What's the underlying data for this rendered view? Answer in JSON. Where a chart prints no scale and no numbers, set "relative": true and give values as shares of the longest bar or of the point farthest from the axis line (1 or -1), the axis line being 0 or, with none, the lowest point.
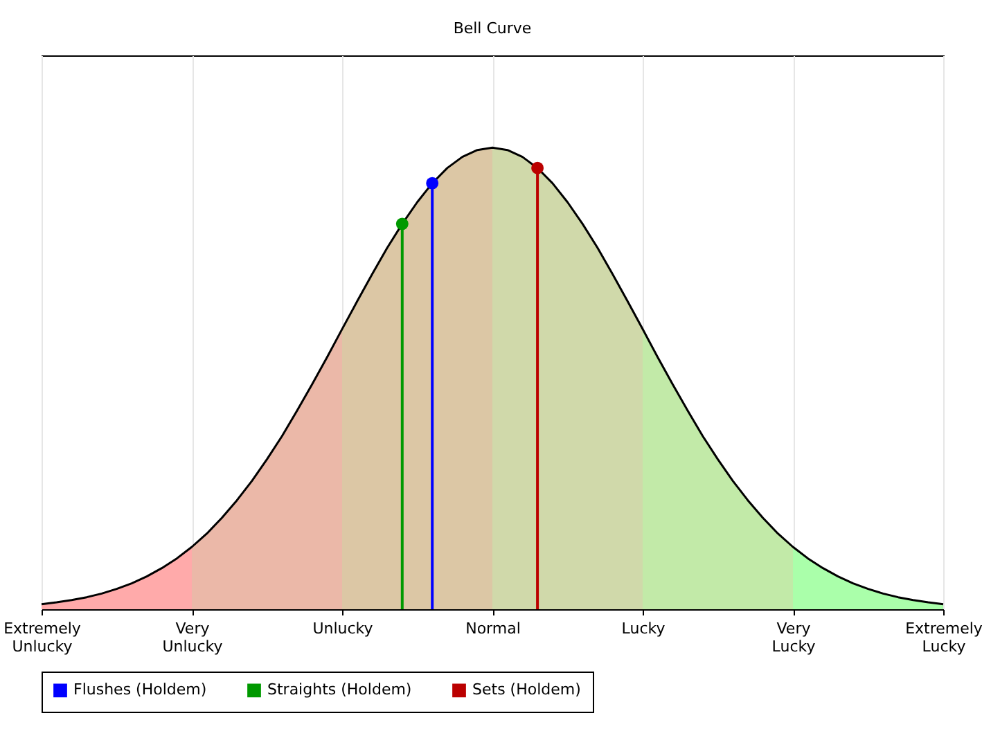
{
  "chart_data": {
    "type": "line",
    "title": "Bell Curve",
    "relative": true,
    "categories": [
      "Extremely Unlucky",
      null,
      null,
      null,
      null,
      null,
      null,
      null,
      null,
      null,
      "Very Unlucky",
      null,
      null,
      null,
      null,
      null,
      null,
      null,
      null,
      null,
      "Unlucky",
      null,
      null,
      null,
      null,
      null,
      null,
      null,
      null,
      null,
      "Normal",
      null,
      null,
      null,
      null,
      null,
      null,
      null,
      null,
      null,
      "Lucky",
      null,
      null,
      null,
      null,
      null,
      null,
      null,
      null,
      null,
      "Very Lucky",
      null,
      null,
      null,
      null,
      null,
      null,
      null,
      null,
      null,
      "Extremely Lucky"
    ],
    "series": [
      {
        "type": "area",
        "color": "#ffaaaa",
        "values": [
          0.011,
          0.015,
          0.02,
          0.026,
          0.034,
          0.044,
          0.056,
          0.071,
          0.089,
          0.11,
          0.135,
          null,
          null,
          null,
          null,
          null,
          null,
          null,
          null,
          null,
          null,
          null,
          null,
          null,
          null,
          null,
          null,
          null,
          null,
          null,
          null,
          null,
          null,
          null,
          null,
          null,
          null,
          null,
          null,
          null,
          null,
          null,
          null,
          null,
          null,
          null,
          null,
          null,
          null,
          null,
          null,
          null,
          null,
          null,
          null,
          null,
          null,
          null,
          null,
          null,
          null
        ]
      },
      {
        "type": "area",
        "color": "#ebb8a8",
        "values": [
          null,
          null,
          null,
          null,
          null,
          null,
          null,
          null,
          null,
          null,
          0.135,
          0.164,
          0.198,
          0.236,
          0.278,
          0.325,
          0.375,
          0.43,
          0.487,
          0.546,
          0.607,
          null,
          null,
          null,
          null,
          null,
          null,
          null,
          null,
          null,
          null,
          null,
          null,
          null,
          null,
          null,
          null,
          null,
          null,
          null,
          null,
          null,
          null,
          null,
          null,
          null,
          null,
          null,
          null,
          null,
          null,
          null,
          null,
          null,
          null,
          null,
          null,
          null,
          null,
          null,
          null
        ]
      },
      {
        "type": "area",
        "color": "#dcc7a5",
        "values": [
          null,
          null,
          null,
          null,
          null,
          null,
          null,
          null,
          null,
          null,
          null,
          null,
          null,
          null,
          null,
          null,
          null,
          null,
          null,
          null,
          0.607,
          0.667,
          0.726,
          0.783,
          0.835,
          0.882,
          0.923,
          0.956,
          0.98,
          0.995,
          1.0,
          null,
          null,
          null,
          null,
          null,
          null,
          null,
          null,
          null,
          null,
          null,
          null,
          null,
          null,
          null,
          null,
          null,
          null,
          null,
          null,
          null,
          null,
          null,
          null,
          null,
          null,
          null,
          null,
          null,
          null
        ]
      },
      {
        "type": "area",
        "color": "#d0d9aa",
        "values": [
          null,
          null,
          null,
          null,
          null,
          null,
          null,
          null,
          null,
          null,
          null,
          null,
          null,
          null,
          null,
          null,
          null,
          null,
          null,
          null,
          null,
          null,
          null,
          null,
          null,
          null,
          null,
          null,
          null,
          null,
          1.0,
          0.995,
          0.98,
          0.956,
          0.923,
          0.882,
          0.835,
          0.783,
          0.726,
          0.667,
          0.607,
          null,
          null,
          null,
          null,
          null,
          null,
          null,
          null,
          null,
          null,
          null,
          null,
          null,
          null,
          null,
          null,
          null,
          null,
          null,
          null
        ]
      },
      {
        "type": "area",
        "color": "#c2eaa8",
        "values": [
          null,
          null,
          null,
          null,
          null,
          null,
          null,
          null,
          null,
          null,
          null,
          null,
          null,
          null,
          null,
          null,
          null,
          null,
          null,
          null,
          null,
          null,
          null,
          null,
          null,
          null,
          null,
          null,
          null,
          null,
          null,
          null,
          null,
          null,
          null,
          null,
          null,
          null,
          null,
          null,
          0.607,
          0.546,
          0.487,
          0.43,
          0.375,
          0.325,
          0.278,
          0.236,
          0.198,
          0.164,
          0.135,
          null,
          null,
          null,
          null,
          null,
          null,
          null,
          null,
          null,
          null
        ]
      },
      {
        "type": "area",
        "color": "#aaffaa",
        "values": [
          null,
          null,
          null,
          null,
          null,
          null,
          null,
          null,
          null,
          null,
          null,
          null,
          null,
          null,
          null,
          null,
          null,
          null,
          null,
          null,
          null,
          null,
          null,
          null,
          null,
          null,
          null,
          null,
          null,
          null,
          null,
          null,
          null,
          null,
          null,
          null,
          null,
          null,
          null,
          null,
          null,
          null,
          null,
          null,
          null,
          null,
          null,
          null,
          null,
          null,
          0.135,
          0.11,
          0.089,
          0.071,
          0.056,
          0.044,
          0.034,
          0.026,
          0.02,
          0.015,
          0.011
        ]
      },
      {
        "type": "line",
        "color": "#000000",
        "values": [
          0.011,
          0.015,
          0.02,
          0.026,
          0.034,
          0.044,
          0.056,
          0.071,
          0.089,
          0.11,
          0.135,
          0.164,
          0.198,
          0.236,
          0.278,
          0.325,
          0.375,
          0.43,
          0.487,
          0.546,
          0.607,
          0.667,
          0.726,
          0.783,
          0.835,
          0.882,
          0.923,
          0.956,
          0.98,
          0.995,
          1.0,
          0.995,
          0.98,
          0.956,
          0.923,
          0.882,
          0.835,
          0.783,
          0.726,
          0.667,
          0.607,
          0.546,
          0.487,
          0.43,
          0.375,
          0.325,
          0.278,
          0.236,
          0.198,
          0.164,
          0.135,
          0.11,
          0.089,
          0.071,
          0.056,
          0.044,
          0.034,
          0.026,
          0.02,
          0.015,
          0.011
        ]
      },
      {
        "type": "lollipop",
        "name": "Flushes (Holdem)",
        "color": "#0000ff",
        "marker": "circle",
        "values": [
          null,
          null,
          null,
          null,
          null,
          null,
          null,
          null,
          null,
          null,
          null,
          null,
          null,
          null,
          null,
          null,
          null,
          null,
          null,
          null,
          null,
          null,
          null,
          null,
          null,
          null,
          0.923,
          null,
          null,
          null,
          null,
          null,
          null,
          null,
          null,
          null,
          null,
          null,
          null,
          null,
          null,
          null,
          null,
          null,
          null,
          null,
          null,
          null,
          null,
          null,
          null,
          null,
          null,
          null,
          null,
          null,
          null,
          null,
          null,
          null,
          null
        ]
      },
      {
        "type": "lollipop",
        "name": "Straights (Holdem)",
        "color": "#009900",
        "marker": "circle",
        "values": [
          null,
          null,
          null,
          null,
          null,
          null,
          null,
          null,
          null,
          null,
          null,
          null,
          null,
          null,
          null,
          null,
          null,
          null,
          null,
          null,
          null,
          null,
          null,
          null,
          0.835,
          null,
          null,
          null,
          null,
          null,
          null,
          null,
          null,
          null,
          null,
          null,
          null,
          null,
          null,
          null,
          null,
          null,
          null,
          null,
          null,
          null,
          null,
          null,
          null,
          null,
          null,
          null,
          null,
          null,
          null,
          null,
          null,
          null,
          null,
          null,
          null
        ]
      },
      {
        "type": "lollipop",
        "name": "Sets (Holdem)",
        "color": "#bb0000",
        "marker": "circle",
        "values": [
          null,
          null,
          null,
          null,
          null,
          null,
          null,
          null,
          null,
          null,
          null,
          null,
          null,
          null,
          null,
          null,
          null,
          null,
          null,
          null,
          null,
          null,
          null,
          null,
          null,
          null,
          null,
          null,
          null,
          null,
          null,
          null,
          null,
          0.956,
          null,
          null,
          null,
          null,
          null,
          null,
          null,
          null,
          null,
          null,
          null,
          null,
          null,
          null,
          null,
          null,
          null,
          null,
          null,
          null,
          null,
          null,
          null,
          null,
          null,
          null,
          null
        ]
      }
    ],
    "grid": "x",
    "legend": "bottom left"
  }
}
